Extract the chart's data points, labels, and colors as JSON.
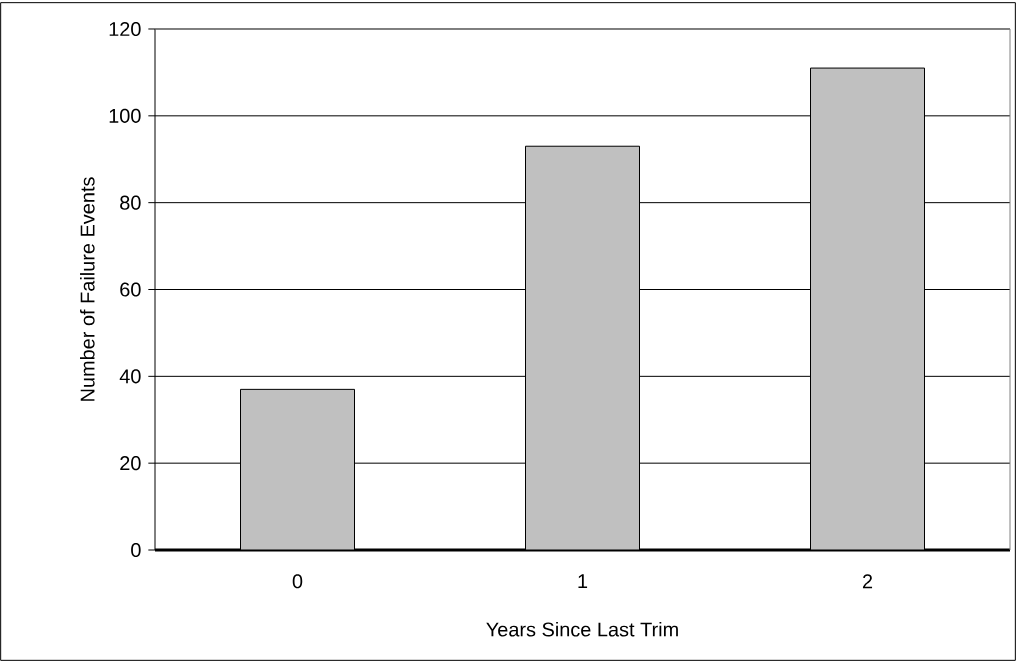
{
  "chart_data": {
    "type": "bar",
    "xlabel": "Years Since Last Trim",
    "ylabel": "Number of Failure Events",
    "categories": [
      "0",
      "1",
      "2"
    ],
    "values": [
      37,
      93,
      111
    ],
    "color": "#c0c0c0",
    "ylim": [
      0,
      120
    ],
    "yticks": [
      0,
      20,
      40,
      60,
      80,
      100,
      120
    ],
    "grid": "y"
  }
}
